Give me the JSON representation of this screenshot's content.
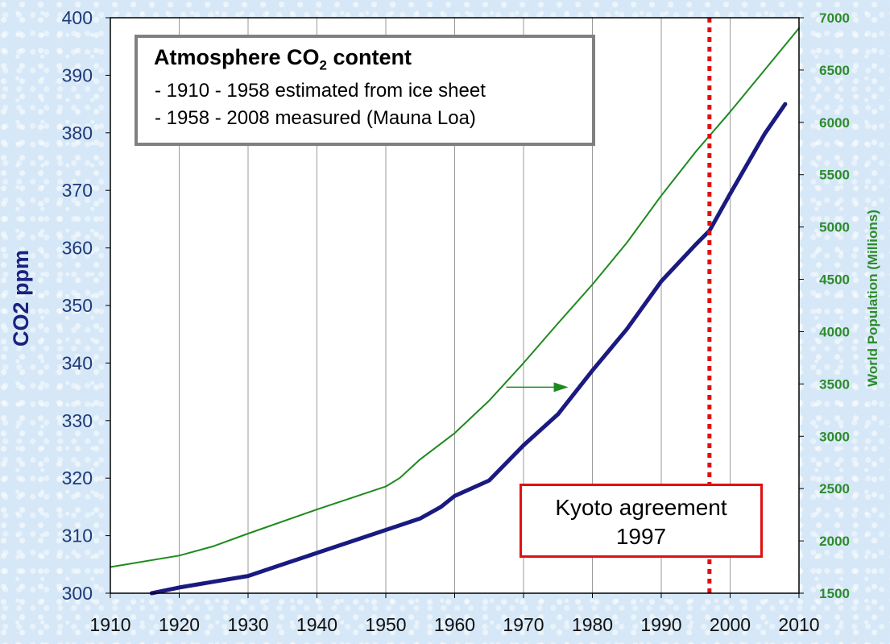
{
  "chart_data": {
    "type": "line",
    "title": "Atmosphere CO2 content",
    "xlabel": "",
    "ylabel": "CO2 ppm",
    "ylabel_right": "World Population (Millions)",
    "xlim": [
      1910,
      2010
    ],
    "ylim": [
      300,
      400
    ],
    "ylim_right": [
      1500,
      7000
    ],
    "x_ticks": [
      "1910",
      "1920",
      "1930",
      "1940",
      "1950",
      "1960",
      "1970",
      "1980",
      "1990",
      "2000",
      "2010"
    ],
    "y_ticks_left": [
      "300",
      "310",
      "320",
      "330",
      "340",
      "350",
      "360",
      "370",
      "380",
      "390",
      "400"
    ],
    "y_ticks_right": [
      "1500",
      "2000",
      "2500",
      "3000",
      "3500",
      "4000",
      "4500",
      "5000",
      "5500",
      "6000",
      "6500",
      "7000"
    ],
    "series": [
      {
        "name": "CO2 ppm",
        "axis": "left",
        "color": "#1a1a80",
        "x": [
          1916,
          1920,
          1925,
          1930,
          1935,
          1940,
          1945,
          1950,
          1955,
          1958,
          1960,
          1965,
          1970,
          1975,
          1980,
          1985,
          1990,
          1995,
          1997,
          2000,
          2005,
          2008
        ],
        "y": [
          300,
          301,
          302,
          303,
          305,
          307,
          309,
          311,
          313,
          315,
          316.9,
          319.6,
          325.7,
          331.1,
          338.7,
          345.9,
          354.2,
          360.6,
          363.0,
          369.4,
          379.8,
          385.0
        ]
      },
      {
        "name": "World Population (Millions)",
        "axis": "right",
        "color": "#1e8a1e",
        "x": [
          1910,
          1920,
          1925,
          1930,
          1940,
          1950,
          1952,
          1955,
          1960,
          1965,
          1970,
          1975,
          1980,
          1985,
          1990,
          1995,
          2000,
          2005,
          2010
        ],
        "y": [
          1750,
          1860,
          1950,
          2070,
          2300,
          2520,
          2600,
          2780,
          3030,
          3340,
          3700,
          4080,
          4450,
          4850,
          5300,
          5720,
          6100,
          6500,
          6900
        ]
      }
    ],
    "annotations": [
      {
        "text": "Kyoto agreement",
        "year_text": "1997",
        "x": 1997,
        "color": "#e01010"
      }
    ],
    "legend_lines": [
      "- 1910 - 1958 estimated from ice sheet",
      "- 1958 - 2008 measured (Mauna Loa)"
    ]
  },
  "legend": {
    "title_prefix": "Atmosphere CO",
    "title_sub": "2",
    "title_suffix": " content",
    "line1": "- 1910 - 1958 estimated from ice sheet",
    "line2": "- 1958 - 2008 measured (Mauna Loa)"
  },
  "kyoto": {
    "line1": "Kyoto agreement",
    "line2": "1997"
  }
}
